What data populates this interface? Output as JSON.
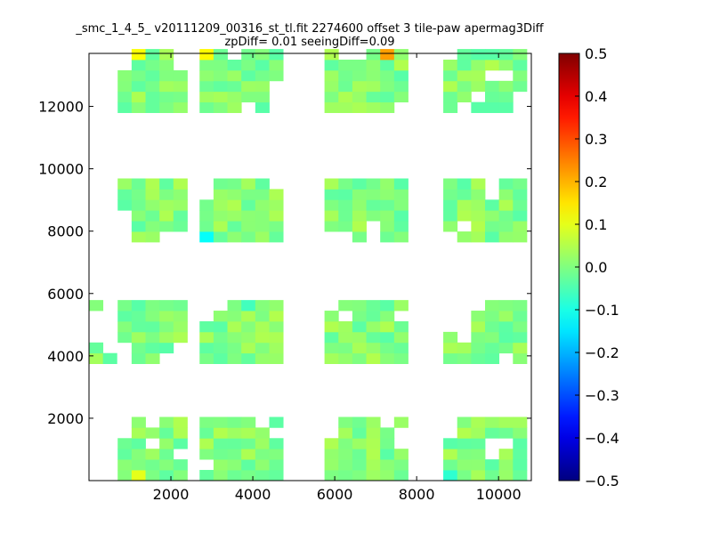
{
  "title_lines": [
    "_smc_1_4_5_ v20111209_00316_st_tl.fit 2274600 offset 3 tile-paw apermag3Diff",
    "zpDiff= 0.01 seeingDiff=0.09"
  ],
  "chart_data": {
    "type": "heatmap",
    "title": "_smc_1_4_5_ v20111209_00316_st_tl.fit 2274600 offset 3 tile-paw apermag3Diff zpDiff= 0.01 seeingDiff=0.09",
    "xlabel": "",
    "ylabel": "",
    "xlim": [
      0,
      10800
    ],
    "ylim": [
      0,
      13700
    ],
    "xticks": [
      2000,
      4000,
      6000,
      8000,
      10000
    ],
    "xtick_labels": [
      "2000",
      "4000",
      "6000",
      "8000",
      "10000"
    ],
    "yticks": [
      2000,
      4000,
      6000,
      8000,
      10000,
      12000
    ],
    "ytick_labels": [
      "2000",
      "4000",
      "6000",
      "8000",
      "10000",
      "12000"
    ],
    "colormap": "jet",
    "clim": [
      -0.5,
      0.5
    ],
    "colorbar_ticks": [
      0.5,
      0.4,
      0.3,
      0.2,
      0.1,
      0.0,
      -0.1,
      -0.2,
      -0.3,
      -0.4,
      -0.5
    ],
    "colorbar_tick_labels": [
      "0.5",
      "0.4",
      "0.3",
      "0.2",
      "0.1",
      "0.0",
      "−0.1",
      "−0.2",
      "−0.3",
      "−0.4",
      "−0.5"
    ],
    "cell_size": 340,
    "grid": false,
    "chips": [
      {
        "x0": 700,
        "y0": 2,
        "nx": 5,
        "ny": 6,
        "miss": [
          [
            0,
            5
          ],
          [
            0,
            4
          ],
          [
            2,
            3
          ],
          [
            2,
            5
          ],
          [
            4,
            2
          ]
        ],
        "hot": [
          [
            1,
            0,
            0.1
          ]
        ]
      },
      {
        "x0": 2700,
        "y0": 2,
        "nx": 6,
        "ny": 6,
        "miss": [
          [
            0,
            1
          ],
          [
            4,
            5
          ],
          [
            5,
            4
          ]
        ],
        "hot": []
      },
      {
        "x0": 5750,
        "y0": 2,
        "nx": 6,
        "ny": 6,
        "miss": [
          [
            0,
            5
          ],
          [
            0,
            4
          ],
          [
            4,
            5
          ],
          [
            5,
            4
          ],
          [
            5,
            3
          ]
        ],
        "hot": []
      },
      {
        "x0": 8650,
        "y0": 2,
        "nx": 6,
        "ny": 6,
        "miss": [
          [
            0,
            5
          ],
          [
            0,
            4
          ],
          [
            3,
            3
          ],
          [
            3,
            2
          ],
          [
            4,
            3
          ]
        ],
        "hot": [
          [
            0,
            0,
            -0.08
          ]
        ]
      },
      {
        "x0": 0,
        "y0": 3750,
        "nx": 2,
        "ny": 6,
        "miss": [
          [
            1,
            1
          ],
          [
            1,
            2
          ],
          [
            1,
            3
          ],
          [
            1,
            4
          ],
          [
            1,
            5
          ],
          [
            0,
            2
          ],
          [
            0,
            3
          ],
          [
            0,
            4
          ]
        ],
        "hot": []
      },
      {
        "x0": 700,
        "y0": 3750,
        "nx": 5,
        "ny": 6,
        "miss": [
          [
            0,
            0
          ],
          [
            0,
            1
          ],
          [
            3,
            0
          ],
          [
            4,
            0
          ],
          [
            4,
            1
          ]
        ],
        "hot": []
      },
      {
        "x0": 2700,
        "y0": 3750,
        "nx": 6,
        "ny": 6,
        "miss": [
          [
            0,
            5
          ],
          [
            1,
            5
          ],
          [
            0,
            4
          ]
        ],
        "hot": [
          [
            3,
            5,
            -0.06
          ]
        ]
      },
      {
        "x0": 5750,
        "y0": 3750,
        "nx": 6,
        "ny": 6,
        "miss": [
          [
            0,
            5
          ],
          [
            1,
            4
          ],
          [
            5,
            4
          ]
        ],
        "hot": []
      },
      {
        "x0": 8650,
        "y0": 3750,
        "nx": 6,
        "ny": 6,
        "miss": [
          [
            0,
            5
          ],
          [
            0,
            4
          ],
          [
            0,
            3
          ],
          [
            1,
            5
          ],
          [
            1,
            4
          ],
          [
            1,
            3
          ],
          [
            1,
            2
          ],
          [
            2,
            5
          ],
          [
            4,
            0
          ]
        ],
        "hot": []
      },
      {
        "x0": 700,
        "y0": 7650,
        "nx": 5,
        "ny": 6,
        "miss": [
          [
            0,
            0
          ],
          [
            0,
            1
          ],
          [
            0,
            2
          ],
          [
            3,
            0
          ],
          [
            4,
            0
          ]
        ],
        "hot": []
      },
      {
        "x0": 2700,
        "y0": 7650,
        "nx": 6,
        "ny": 6,
        "miss": [
          [
            0,
            5
          ],
          [
            0,
            4
          ],
          [
            5,
            5
          ]
        ],
        "hot": [
          [
            0,
            0,
            -0.12
          ]
        ]
      },
      {
        "x0": 5750,
        "y0": 7650,
        "nx": 6,
        "ny": 6,
        "miss": [
          [
            0,
            0
          ],
          [
            1,
            0
          ],
          [
            3,
            1
          ],
          [
            3,
            0
          ]
        ],
        "hot": []
      },
      {
        "x0": 8650,
        "y0": 7650,
        "nx": 6,
        "ny": 6,
        "miss": [
          [
            3,
            5
          ],
          [
            3,
            4
          ],
          [
            1,
            1
          ],
          [
            0,
            0
          ]
        ],
        "hot": []
      },
      {
        "x0": 700,
        "y0": 11800,
        "nx": 5,
        "ny": 6,
        "miss": [
          [
            0,
            5
          ],
          [
            0,
            4
          ],
          [
            4,
            5
          ],
          [
            4,
            4
          ]
        ],
        "hot": [
          [
            1,
            5,
            0.12
          ]
        ]
      },
      {
        "x0": 2700,
        "y0": 11800,
        "nx": 6,
        "ny": 6,
        "miss": [
          [
            2,
            5
          ],
          [
            5,
            2
          ],
          [
            5,
            1
          ],
          [
            5,
            0
          ],
          [
            3,
            0
          ]
        ],
        "hot": [
          [
            0,
            5,
            0.13
          ]
        ]
      },
      {
        "x0": 5750,
        "y0": 11800,
        "nx": 6,
        "ny": 6,
        "miss": [
          [
            2,
            5
          ],
          [
            5,
            0
          ],
          [
            1,
            5
          ]
        ],
        "hot": [
          [
            4,
            5,
            0.22
          ]
        ]
      },
      {
        "x0": 8650,
        "y0": 11800,
        "nx": 6,
        "ny": 6,
        "miss": [
          [
            0,
            5
          ],
          [
            3,
            3
          ],
          [
            4,
            3
          ],
          [
            1,
            0
          ],
          [
            2,
            1
          ],
          [
            5,
            0
          ],
          [
            5,
            1
          ]
        ],
        "hot": []
      }
    ]
  }
}
